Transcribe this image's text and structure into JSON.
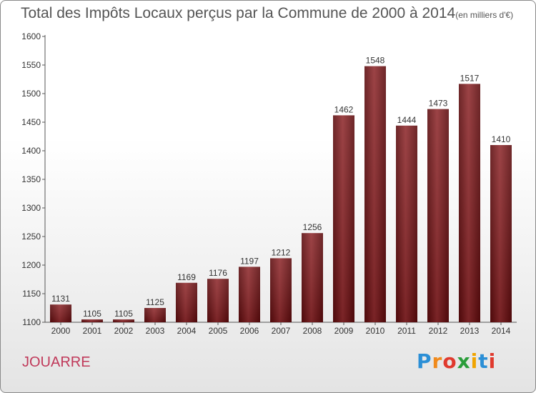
{
  "chart_data": {
    "type": "bar",
    "title": "Total des Impôts Locaux perçus par la Commune de 2000 à 2014",
    "title_unit": "(en milliers d'€)",
    "categories": [
      "2000",
      "2001",
      "2002",
      "2003",
      "2004",
      "2005",
      "2006",
      "2007",
      "2008",
      "2009",
      "2010",
      "2011",
      "2012",
      "2013",
      "2014"
    ],
    "values": [
      1131,
      1105,
      1105,
      1125,
      1169,
      1176,
      1197,
      1212,
      1256,
      1462,
      1548,
      1444,
      1473,
      1517,
      1410
    ],
    "ylim": [
      1100,
      1600
    ],
    "yticks": [
      1100,
      1150,
      1200,
      1250,
      1300,
      1350,
      1400,
      1450,
      1500,
      1550,
      1600
    ],
    "xlabel": "",
    "ylabel": "",
    "grid": false,
    "bar_color": "#7a1518"
  },
  "commune": "JOUARRE",
  "brand": {
    "letters": [
      {
        "ch": "P",
        "color": "#2b8fd6"
      },
      {
        "ch": "r",
        "color": "#f08a1c"
      },
      {
        "ch": "o",
        "color": "#e03a2e"
      },
      {
        "ch": "x",
        "color": "#2a9d3a"
      },
      {
        "ch": "i",
        "color": "#f0a400"
      },
      {
        "ch": "t",
        "color": "#2b8fd6"
      },
      {
        "ch": "i",
        "color": "#e03a2e"
      }
    ]
  }
}
